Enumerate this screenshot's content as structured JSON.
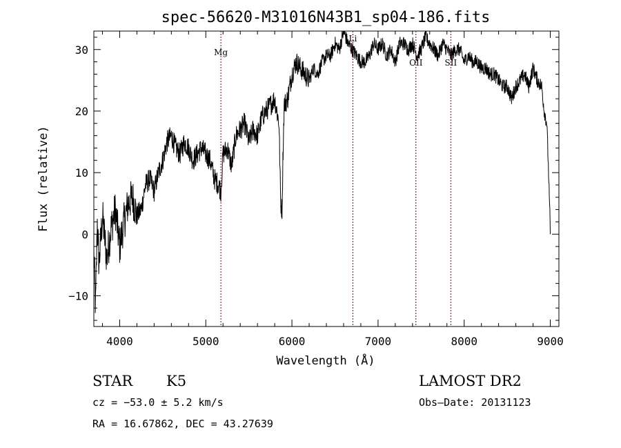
{
  "chart_data": {
    "type": "line",
    "title": "spec-56620-M31016N43B1_sp04-186.fits",
    "xlabel": "Wavelength (Å)",
    "ylabel": "Flux (relative)",
    "xlim": [
      3700,
      9100
    ],
    "ylim": [
      -15,
      33
    ],
    "xticks": [
      4000,
      5000,
      6000,
      7000,
      8000,
      9000
    ],
    "yticks": [
      -10,
      0,
      10,
      20,
      30
    ],
    "grid": false,
    "line_color": "#000000",
    "marker_color": "#8b0000",
    "spectral_lines": [
      {
        "label": "Mg",
        "x": 5175
      },
      {
        "label": "Li",
        "x": 6708
      },
      {
        "label": "OII",
        "x": 7440
      },
      {
        "label": "SII",
        "x": 7845
      }
    ],
    "series": [
      {
        "x": [
          3700,
          3720,
          3740,
          3760,
          3800,
          3850,
          3900,
          3950,
          4000,
          4050,
          4100,
          4150,
          4200,
          4250,
          4300,
          4350,
          4400,
          4450,
          4500,
          4550,
          4600,
          4650,
          4700,
          4750,
          4800,
          4850,
          4900,
          4950,
          5000,
          5050,
          5100,
          5150,
          5175,
          5200,
          5250,
          5300,
          5350,
          5400,
          5450,
          5500,
          5550,
          5600,
          5650,
          5700,
          5750,
          5800,
          5850,
          5870,
          5885,
          5895,
          5910,
          5950,
          6000,
          6050,
          6100,
          6150,
          6200,
          6250,
          6300,
          6350,
          6400,
          6450,
          6500,
          6550,
          6600,
          6650,
          6700,
          6750,
          6800,
          6850,
          6900,
          6950,
          7000,
          7050,
          7100,
          7150,
          7200,
          7250,
          7300,
          7350,
          7400,
          7450,
          7500,
          7550,
          7600,
          7650,
          7700,
          7750,
          7800,
          7850,
          7900,
          7950,
          8000,
          8050,
          8100,
          8150,
          8200,
          8250,
          8300,
          8350,
          8400,
          8450,
          8500,
          8550,
          8600,
          8650,
          8700,
          8750,
          8800,
          8850,
          8900,
          8930,
          8960,
          8980,
          8995,
          9000
        ],
        "values": [
          -3,
          -12,
          2,
          -5,
          3,
          -4,
          1,
          4,
          -2,
          2,
          5,
          6,
          3,
          4,
          8,
          9,
          7,
          10,
          12,
          15,
          16,
          14,
          13,
          15,
          14,
          12,
          13,
          14,
          13,
          12,
          9,
          8,
          7,
          13,
          14,
          11,
          16,
          17,
          18,
          15,
          17,
          16,
          19,
          20,
          21,
          22,
          18,
          5,
          4,
          12,
          21,
          22,
          26,
          28,
          27,
          26,
          25,
          27,
          26,
          28,
          29,
          29,
          31,
          30,
          33,
          31,
          30,
          29,
          28,
          28,
          29,
          31,
          30,
          31,
          29,
          30,
          28,
          31,
          31,
          30,
          31,
          29,
          30,
          32,
          31,
          30,
          29,
          31,
          30,
          29,
          30,
          30,
          28,
          29,
          28,
          28,
          27,
          27,
          26,
          26,
          25,
          24,
          24,
          22,
          24,
          25,
          26,
          24,
          27,
          25,
          24,
          20,
          18,
          10,
          3,
          0
        ]
      }
    ]
  },
  "info": {
    "object_type": "STAR",
    "subclass": "K5",
    "survey": "LAMOST DR2",
    "velocity": "cz = −53.0 ± 5.2 km/s",
    "obs_date": "Obs–Date: 20131123",
    "coords": "RA =  16.67862, DEC =  43.27639"
  }
}
